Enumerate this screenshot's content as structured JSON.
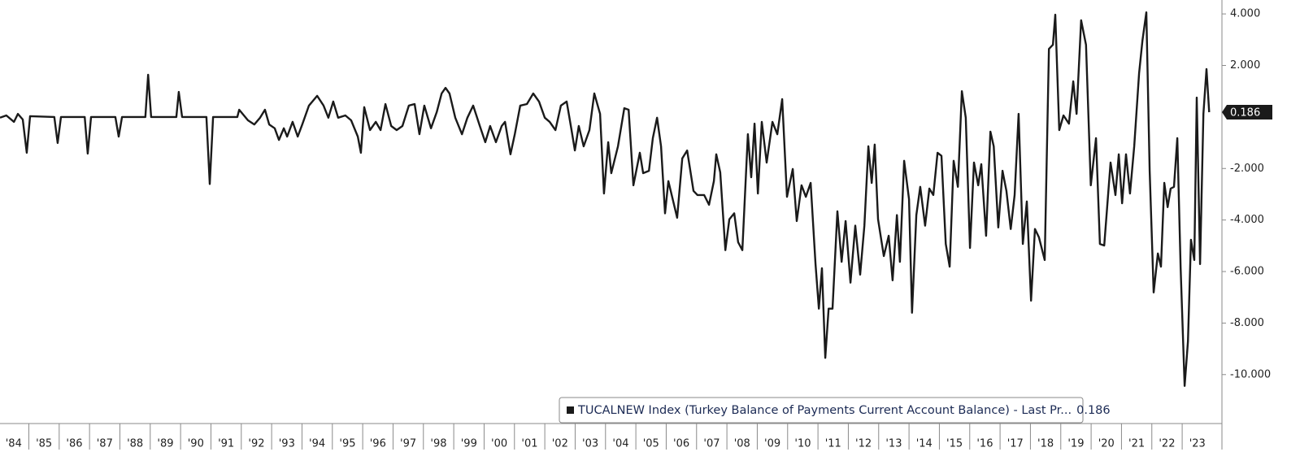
{
  "chart_data": {
    "type": "line",
    "xlim": [
      1984.05,
      2024.31
    ],
    "ylim": [
      -11.9,
      4.54
    ],
    "xticks": [
      {
        "value": 1984,
        "label": "'84"
      },
      {
        "value": 1985,
        "label": "'85"
      },
      {
        "value": 1986,
        "label": "'86"
      },
      {
        "value": 1987,
        "label": "'87"
      },
      {
        "value": 1988,
        "label": "'88"
      },
      {
        "value": 1989,
        "label": "'89"
      },
      {
        "value": 1990,
        "label": "'90"
      },
      {
        "value": 1991,
        "label": "'91"
      },
      {
        "value": 1992,
        "label": "'92"
      },
      {
        "value": 1993,
        "label": "'93"
      },
      {
        "value": 1994,
        "label": "'94"
      },
      {
        "value": 1995,
        "label": "'95"
      },
      {
        "value": 1996,
        "label": "'96"
      },
      {
        "value": 1997,
        "label": "'97"
      },
      {
        "value": 1998,
        "label": "'98"
      },
      {
        "value": 1999,
        "label": "'99"
      },
      {
        "value": 2000,
        "label": "'00"
      },
      {
        "value": 2001,
        "label": "'01"
      },
      {
        "value": 2002,
        "label": "'02"
      },
      {
        "value": 2003,
        "label": "'03"
      },
      {
        "value": 2004,
        "label": "'04"
      },
      {
        "value": 2005,
        "label": "'05"
      },
      {
        "value": 2006,
        "label": "'06"
      },
      {
        "value": 2007,
        "label": "'07"
      },
      {
        "value": 2008,
        "label": "'08"
      },
      {
        "value": 2009,
        "label": "'09"
      },
      {
        "value": 2010,
        "label": "'10"
      },
      {
        "value": 2011,
        "label": "'11"
      },
      {
        "value": 2012,
        "label": "'12"
      },
      {
        "value": 2013,
        "label": "'13"
      },
      {
        "value": 2014,
        "label": "'14"
      },
      {
        "value": 2015,
        "label": "'15"
      },
      {
        "value": 2016,
        "label": "'16"
      },
      {
        "value": 2017,
        "label": "'17"
      },
      {
        "value": 2018,
        "label": "'18"
      },
      {
        "value": 2019,
        "label": "'19"
      },
      {
        "value": 2020,
        "label": "'20"
      },
      {
        "value": 2021,
        "label": "'21"
      },
      {
        "value": 2022,
        "label": "'22"
      },
      {
        "value": 2023,
        "label": "'23"
      }
    ],
    "yticks": [
      {
        "value": 4,
        "label": "4.000"
      },
      {
        "value": 2,
        "label": "2.000"
      },
      {
        "value": -2,
        "label": "-2.000"
      },
      {
        "value": -4,
        "label": "-4.000"
      },
      {
        "value": -6,
        "label": "-6.000"
      },
      {
        "value": -8,
        "label": "-8.000"
      },
      {
        "value": -10,
        "label": "-10.000"
      }
    ],
    "legend": "bottom",
    "series": [
      {
        "name": "TUCALNEW Index (Turkey Balance of Payments Current Account Balance) - Last Pr...",
        "color": "#1a1a1a",
        "x": [
          1984.05,
          1984.26,
          1984.51,
          1984.64,
          1984.8,
          1984.93,
          1985.04,
          1985.84,
          1985.95,
          1986.06,
          1986.84,
          1986.94,
          1987.05,
          1987.85,
          1987.96,
          1988.07,
          1988.84,
          1988.93,
          1989.03,
          1989.86,
          1989.94,
          1990.05,
          1990.85,
          1990.96,
          1991.07,
          1991.87,
          1991.93,
          1992.22,
          1992.43,
          1992.62,
          1992.78,
          1992.92,
          1993.1,
          1993.24,
          1993.4,
          1993.51,
          1993.69,
          1993.86,
          1994.01,
          1994.23,
          1994.5,
          1994.71,
          1994.87,
          1995.03,
          1995.19,
          1995.43,
          1995.62,
          1995.84,
          1995.94,
          1996.05,
          1996.24,
          1996.43,
          1996.59,
          1996.75,
          1996.94,
          1997.12,
          1997.31,
          1997.52,
          1997.71,
          1997.87,
          1998.03,
          1998.25,
          1998.44,
          1998.6,
          1998.73,
          1998.86,
          1999.05,
          1999.27,
          1999.45,
          1999.64,
          1999.86,
          2000.04,
          2000.2,
          2000.39,
          2000.58,
          2000.69,
          2000.87,
          2001.01,
          2001.19,
          2001.41,
          2001.62,
          2001.81,
          2002.0,
          2002.16,
          2002.35,
          2002.53,
          2002.72,
          2002.88,
          2002.99,
          2003.12,
          2003.28,
          2003.47,
          2003.63,
          2003.82,
          2003.95,
          2004.09,
          2004.19,
          2004.41,
          2004.62,
          2004.76,
          2004.92,
          2005.13,
          2005.24,
          2005.43,
          2005.56,
          2005.7,
          2005.83,
          2005.96,
          2006.07,
          2006.18,
          2006.36,
          2006.53,
          2006.69,
          2006.9,
          2007.03,
          2007.25,
          2007.41,
          2007.57,
          2007.65,
          2007.78,
          2007.95,
          2008.08,
          2008.24,
          2008.37,
          2008.51,
          2008.69,
          2008.8,
          2008.91,
          2009.02,
          2009.15,
          2009.31,
          2009.5,
          2009.66,
          2009.82,
          2009.98,
          2010.17,
          2010.3,
          2010.46,
          2010.6,
          2010.76,
          2010.92,
          2011.03,
          2011.13,
          2011.24,
          2011.35,
          2011.48,
          2011.64,
          2011.78,
          2011.91,
          2012.07,
          2012.23,
          2012.39,
          2012.53,
          2012.66,
          2012.77,
          2012.87,
          2012.98,
          2013.17,
          2013.33,
          2013.46,
          2013.6,
          2013.7,
          2013.84,
          2014.0,
          2014.1,
          2014.24,
          2014.37,
          2014.53,
          2014.67,
          2014.8,
          2014.94,
          2015.07,
          2015.21,
          2015.34,
          2015.47,
          2015.61,
          2015.74,
          2015.87,
          2016.01,
          2016.14,
          2016.28,
          2016.38,
          2016.54,
          2016.68,
          2016.79,
          2016.94,
          2017.08,
          2017.21,
          2017.35,
          2017.48,
          2017.61,
          2017.75,
          2017.88,
          2018.02,
          2018.15,
          2018.28,
          2018.47,
          2018.61,
          2018.74,
          2018.82,
          2018.95,
          2019.09,
          2019.27,
          2019.41,
          2019.52,
          2019.67,
          2019.83,
          2019.99,
          2020.16,
          2020.29,
          2020.43,
          2020.64,
          2020.8,
          2020.91,
          2021.02,
          2021.15,
          2021.28,
          2021.42,
          2021.58,
          2021.69,
          2021.82,
          2021.93,
          2022.06,
          2022.2,
          2022.3,
          2022.41,
          2022.52,
          2022.62,
          2022.73,
          2022.84,
          2022.95,
          2023.08,
          2023.19,
          2023.29,
          2023.4,
          2023.48,
          2023.59,
          2023.7,
          2023.8,
          2023.89
        ],
        "values": [
          -0.03,
          0.06,
          -0.19,
          0.12,
          -0.1,
          -1.39,
          0.03,
          0,
          -1.01,
          0,
          0,
          -1.42,
          0,
          0,
          -0.76,
          0,
          0,
          1.64,
          0,
          0,
          0.97,
          0,
          0,
          -2.6,
          0,
          0,
          0.28,
          -0.13,
          -0.29,
          -0.03,
          0.28,
          -0.29,
          -0.44,
          -0.89,
          -0.44,
          -0.76,
          -0.19,
          -0.76,
          -0.29,
          0.44,
          0.82,
          0.44,
          -0.03,
          0.6,
          -0.03,
          0.06,
          -0.13,
          -0.76,
          -1.39,
          0.38,
          -0.51,
          -0.19,
          -0.51,
          0.5,
          -0.35,
          -0.51,
          -0.35,
          0.44,
          0.5,
          -0.67,
          0.44,
          -0.44,
          0.19,
          0.91,
          1.13,
          0.91,
          -0.03,
          -0.67,
          -0.03,
          0.44,
          -0.35,
          -0.98,
          -0.35,
          -0.98,
          -0.35,
          -0.19,
          -1.45,
          -0.67,
          0.44,
          0.5,
          0.91,
          0.6,
          -0.03,
          -0.19,
          -0.51,
          0.44,
          0.6,
          -0.51,
          -1.3,
          -0.35,
          -1.14,
          -0.51,
          0.91,
          0.12,
          -2.97,
          -0.98,
          -2.18,
          -1.14,
          0.34,
          0.28,
          -2.65,
          -1.39,
          -2.18,
          -2.09,
          -0.82,
          -0.03,
          -1.14,
          -3.74,
          -2.49,
          -3.03,
          -3.91,
          -1.61,
          -1.3,
          -2.87,
          -3.03,
          -3.03,
          -3.41,
          -2.49,
          -1.45,
          -2.15,
          -5.17,
          -3.97,
          -3.74,
          -4.86,
          -5.17,
          -0.67,
          -2.34,
          -0.26,
          -2.97,
          -0.19,
          -1.77,
          -0.19,
          -0.67,
          0.69,
          -3.1,
          -2.02,
          -4.04,
          -2.65,
          -3.1,
          -2.56,
          -5.71,
          -7.44,
          -5.87,
          -9.35,
          -7.44,
          -7.44,
          -3.66,
          -5.62,
          -4.04,
          -6.43,
          -4.22,
          -6.12,
          -4.22,
          -1.14,
          -2.56,
          -1.07,
          -3.97,
          -5.4,
          -4.61,
          -6.34,
          -3.81,
          -5.62,
          -1.7,
          -3.19,
          -7.6,
          -3.81,
          -2.71,
          -4.22,
          -2.78,
          -3.03,
          -1.39,
          -1.51,
          -4.93,
          -5.81,
          -1.7,
          -2.71,
          1.0,
          -0.03,
          -5.08,
          -1.77,
          -2.65,
          -1.83,
          -4.61,
          -0.57,
          -1.14,
          -4.29,
          -2.09,
          -2.87,
          -4.35,
          -3.03,
          0.12,
          -4.93,
          -3.28,
          -7.13,
          -4.35,
          -4.67,
          -5.55,
          2.64,
          2.8,
          3.97,
          -0.51,
          0.06,
          -0.26,
          1.38,
          0.12,
          3.75,
          2.8,
          -2.65,
          -0.82,
          -4.93,
          -4.99,
          -1.77,
          -3.03,
          -1.45,
          -3.35,
          -1.45,
          -2.97,
          -1.14,
          1.7,
          2.96,
          4.06,
          -2.09,
          -6.81,
          -5.3,
          -5.81,
          -2.56,
          -3.5,
          -2.78,
          -2.71,
          -0.82,
          -5.87,
          -10.44,
          -8.71,
          -4.77,
          -5.55,
          0.75,
          -5.71,
          0.12,
          1.86,
          0.186
        ]
      }
    ]
  }
}
